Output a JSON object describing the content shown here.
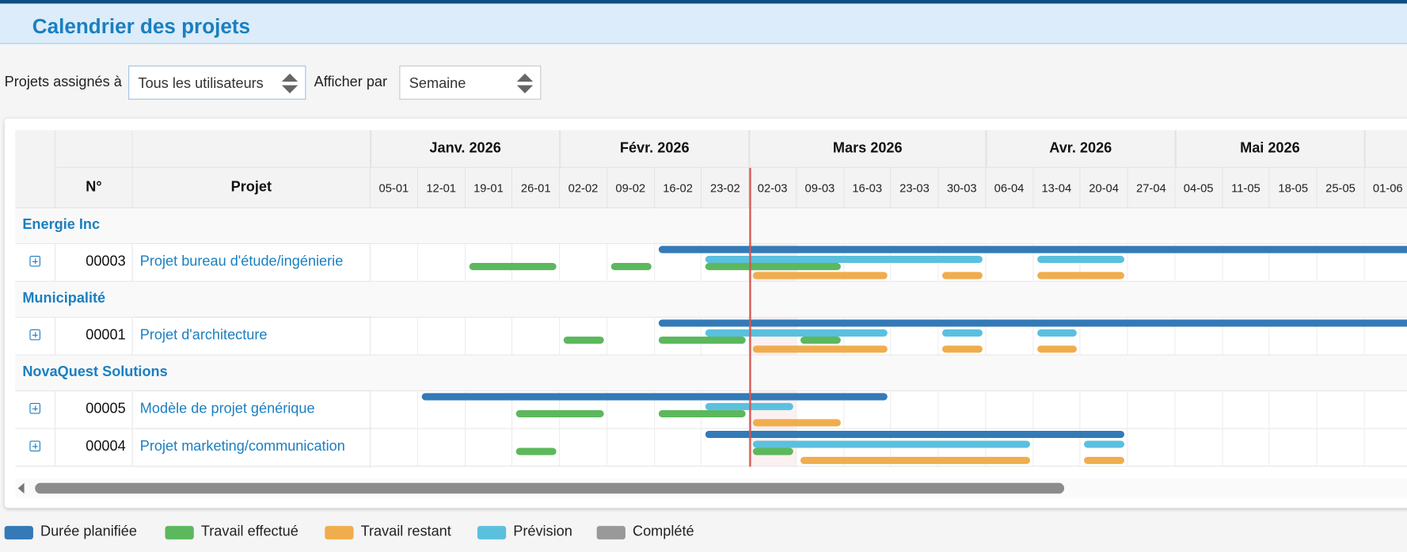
{
  "header": {
    "title": "Calendrier des projets"
  },
  "filters": {
    "assigned_label": "Projets assignés à",
    "assigned_value": "Tous les utilisateurs",
    "display_label": "Afficher par",
    "display_value": "Semaine"
  },
  "table": {
    "col_number": "N°",
    "col_project": "Projet",
    "months": [
      {
        "label": "Janv. 2026",
        "weeks": 4
      },
      {
        "label": "Févr. 2026",
        "weeks": 4
      },
      {
        "label": "Mars 2026",
        "weeks": 5
      },
      {
        "label": "Avr. 2026",
        "weeks": 4
      },
      {
        "label": "Mai 2026",
        "weeks": 4
      },
      {
        "label": "",
        "weeks": 1
      }
    ],
    "weeks": [
      "05-01",
      "12-01",
      "19-01",
      "26-01",
      "02-02",
      "09-02",
      "16-02",
      "23-02",
      "02-03",
      "09-03",
      "16-03",
      "23-03",
      "30-03",
      "06-04",
      "13-04",
      "20-04",
      "27-04",
      "04-05",
      "11-05",
      "18-05",
      "25-05",
      "01-06"
    ],
    "first_week": "2026-01-05",
    "today": "2026-03-02",
    "groups": [
      {
        "name": "Energie Inc",
        "projects": [
          {
            "number": "00003",
            "name": "Projet bureau d'étude/ingénierie",
            "bars": {
              "planned": [
                [
                  "2026-02-16",
                  null
                ]
              ],
              "forecast": [
                [
                  "2026-02-23",
                  "2026-04-05"
                ],
                [
                  "2026-04-13",
                  "2026-04-26"
                ]
              ],
              "done": [
                [
                  "2026-01-19",
                  "2026-02-01"
                ],
                [
                  "2026-02-09",
                  "2026-02-15"
                ],
                [
                  "2026-02-23",
                  "2026-03-15"
                ]
              ],
              "remaining": [
                [
                  "2026-03-02",
                  "2026-03-22"
                ],
                [
                  "2026-03-30",
                  "2026-04-05"
                ],
                [
                  "2026-04-13",
                  "2026-04-26"
                ]
              ]
            }
          }
        ]
      },
      {
        "name": "Municipalité",
        "projects": [
          {
            "number": "00001",
            "name": "Projet d'architecture",
            "bars": {
              "planned": [
                [
                  "2026-02-16",
                  null
                ]
              ],
              "forecast": [
                [
                  "2026-02-23",
                  "2026-03-22"
                ],
                [
                  "2026-03-30",
                  "2026-04-05"
                ],
                [
                  "2026-04-13",
                  "2026-04-19"
                ]
              ],
              "done": [
                [
                  "2026-02-02",
                  "2026-02-08"
                ],
                [
                  "2026-02-16",
                  "2026-03-01"
                ],
                [
                  "2026-03-09",
                  "2026-03-15"
                ]
              ],
              "remaining": [
                [
                  "2026-03-02",
                  "2026-03-22"
                ],
                [
                  "2026-03-30",
                  "2026-04-05"
                ],
                [
                  "2026-04-13",
                  "2026-04-19"
                ]
              ]
            }
          }
        ]
      },
      {
        "name": "NovaQuest Solutions",
        "projects": [
          {
            "number": "00005",
            "name": "Modèle de projet générique",
            "bars": {
              "planned": [
                [
                  "2026-01-12",
                  "2026-03-22"
                ]
              ],
              "forecast": [
                [
                  "2026-02-23",
                  "2026-03-08"
                ]
              ],
              "done": [
                [
                  "2026-01-26",
                  "2026-02-08"
                ],
                [
                  "2026-02-16",
                  "2026-03-01"
                ]
              ],
              "remaining": [
                [
                  "2026-03-02",
                  "2026-03-15"
                ]
              ]
            }
          },
          {
            "number": "00004",
            "name": "Projet marketing/communication",
            "bars": {
              "planned": [
                [
                  "2026-02-23",
                  "2026-04-26"
                ]
              ],
              "forecast": [
                [
                  "2026-03-02",
                  "2026-04-12"
                ],
                [
                  "2026-04-20",
                  "2026-04-26"
                ]
              ],
              "done": [
                [
                  "2026-01-26",
                  "2026-02-01"
                ],
                [
                  "2026-03-02",
                  "2026-03-08"
                ]
              ],
              "remaining": [
                [
                  "2026-03-09",
                  "2026-04-12"
                ],
                [
                  "2026-04-20",
                  "2026-04-26"
                ]
              ]
            }
          }
        ]
      }
    ]
  },
  "legend": [
    {
      "key": "planned",
      "label": "Durée planifiée",
      "color": "#337ab7"
    },
    {
      "key": "done",
      "label": "Travail effectué",
      "color": "#5cb85c"
    },
    {
      "key": "remaining",
      "label": "Travail restant",
      "color": "#f0ad4e"
    },
    {
      "key": "forecast",
      "label": "Prévision",
      "color": "#5bc0de"
    },
    {
      "key": "completed",
      "label": "Complété",
      "color": "#999999"
    }
  ],
  "colors": {
    "today_line": "#d9534f",
    "accent": "#1a7fc1"
  }
}
